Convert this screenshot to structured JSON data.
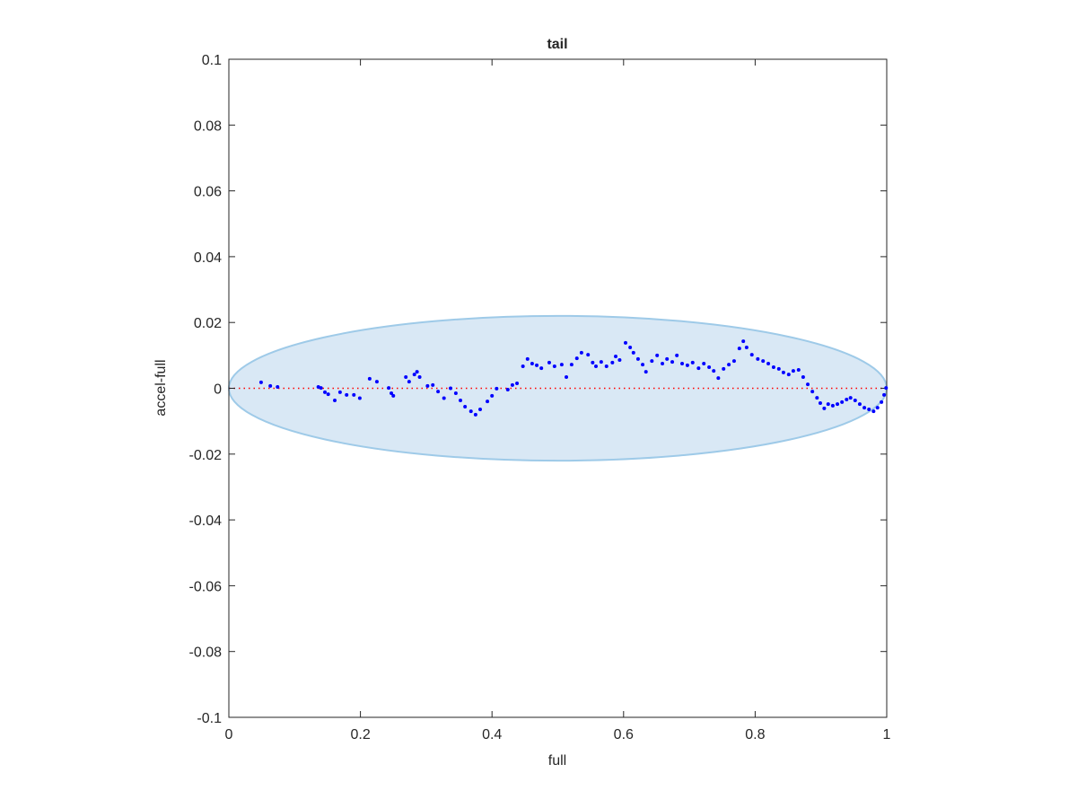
{
  "chart_data": {
    "type": "scatter",
    "title": "tail",
    "x_label": "full",
    "y_label": "accel-full",
    "xlim": [
      0,
      1
    ],
    "ylim": [
      -0.1,
      0.1
    ],
    "xticks": [
      0,
      0.2,
      0.4,
      0.6,
      0.8,
      1
    ],
    "yticks": [
      -0.1,
      -0.08,
      -0.06,
      -0.04,
      -0.02,
      0,
      0.02,
      0.04,
      0.06,
      0.08,
      0.1
    ],
    "ellipse": {
      "cx": 0.5,
      "cy": 0,
      "rx": 0.5,
      "ry": 0.022,
      "color": "#9ecae8"
    },
    "reference_line": {
      "y": 0,
      "color": "#ff0000"
    },
    "series": [
      {
        "color": "#0000ff",
        "x": [
          0.049,
          0.063,
          0.074,
          0.136,
          0.14,
          0.146,
          0.151,
          0.161,
          0.169,
          0.179,
          0.19,
          0.199,
          0.214,
          0.225,
          0.243,
          0.247,
          0.25,
          0.269,
          0.274,
          0.282,
          0.286,
          0.29,
          0.302,
          0.31,
          0.318,
          0.327,
          0.337,
          0.345,
          0.352,
          0.359,
          0.368,
          0.375,
          0.382,
          0.393,
          0.4,
          0.407,
          0.424,
          0.431,
          0.438,
          0.447,
          0.454,
          0.461,
          0.468,
          0.475,
          0.487,
          0.495,
          0.506,
          0.513,
          0.521,
          0.529,
          0.536,
          0.546,
          0.553,
          0.558,
          0.566,
          0.574,
          0.583,
          0.588,
          0.594,
          0.603,
          0.61,
          0.615,
          0.622,
          0.629,
          0.634,
          0.643,
          0.651,
          0.659,
          0.666,
          0.674,
          0.681,
          0.689,
          0.697,
          0.705,
          0.714,
          0.722,
          0.73,
          0.737,
          0.744,
          0.752,
          0.76,
          0.768,
          0.776,
          0.782,
          0.787,
          0.795,
          0.804,
          0.812,
          0.82,
          0.828,
          0.836,
          0.843,
          0.851,
          0.858,
          0.866,
          0.873,
          0.88,
          0.887,
          0.894,
          0.899,
          0.905,
          0.911,
          0.918,
          0.925,
          0.932,
          0.939,
          0.945,
          0.952,
          0.959,
          0.966,
          0.973,
          0.98,
          0.986,
          0.992,
          0.996,
          0.999
        ],
        "values": [
          0.0018,
          0.0007,
          0.0004,
          0.0004,
          0.0001,
          -0.0012,
          -0.0018,
          -0.0037,
          -0.0012,
          -0.002,
          -0.002,
          -0.003,
          0.0029,
          0.002,
          0.0001,
          -0.0015,
          -0.0023,
          0.0034,
          0.002,
          0.0042,
          0.005,
          0.0034,
          0.0007,
          0.001,
          -0.001,
          -0.003,
          0,
          -0.0015,
          -0.0037,
          -0.0056,
          -0.007,
          -0.008,
          -0.0064,
          -0.004,
          -0.0023,
          -0.0001,
          -0.0004,
          0.001,
          0.0015,
          0.0067,
          0.0089,
          0.0075,
          0.007,
          0.0061,
          0.0078,
          0.0067,
          0.0072,
          0.0034,
          0.0072,
          0.0091,
          0.0108,
          0.0102,
          0.0078,
          0.0067,
          0.008,
          0.0067,
          0.0078,
          0.0097,
          0.0086,
          0.0138,
          0.0124,
          0.0108,
          0.0089,
          0.0072,
          0.005,
          0.0083,
          0.01,
          0.0075,
          0.0089,
          0.008,
          0.01,
          0.0075,
          0.007,
          0.0078,
          0.0061,
          0.0075,
          0.0064,
          0.0053,
          0.0031,
          0.0059,
          0.0072,
          0.0083,
          0.0121,
          0.0143,
          0.0124,
          0.0102,
          0.0089,
          0.0083,
          0.0075,
          0.0064,
          0.0059,
          0.0048,
          0.0042,
          0.0053,
          0.0056,
          0.0034,
          0.0012,
          -0.001,
          -0.0029,
          -0.0045,
          -0.0061,
          -0.0048,
          -0.0053,
          -0.0048,
          -0.0042,
          -0.0034,
          -0.0029,
          -0.0037,
          -0.0048,
          -0.0059,
          -0.0064,
          -0.007,
          -0.0059,
          -0.0042,
          -0.002,
          0.0001
        ]
      }
    ]
  }
}
